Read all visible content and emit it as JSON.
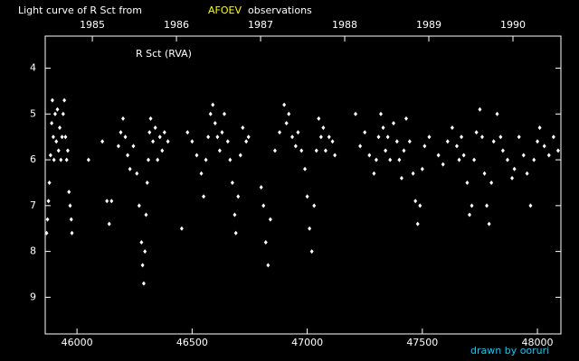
{
  "chart_data": {
    "type": "scatter",
    "title": "Light curve of R Sct from",
    "title_highlight": "AFOEV",
    "title_end": "observations",
    "annotation": "R Sct (RVA)",
    "credit": "drawn by ooruri",
    "xlim": [
      45862,
      48102
    ],
    "xticks": [
      46000,
      46500,
      47000,
      47500,
      48000
    ],
    "x2lim": [
      1984.44,
      1990.57
    ],
    "x2ticks": [
      1985,
      1986,
      1987,
      1988,
      1989,
      1990
    ],
    "ylim": [
      3.3,
      9.8
    ],
    "y_inverted": true,
    "yticks": [
      4,
      5,
      6,
      7,
      8,
      9
    ],
    "color": "#ffffff",
    "x": [
      45868,
      45872,
      45876,
      45880,
      45885,
      45890,
      45893,
      45897,
      45900,
      45905,
      45910,
      45915,
      45920,
      45925,
      45930,
      45935,
      45940,
      45945,
      45950,
      45955,
      45960,
      45965,
      45970,
      45975,
      45978,
      46050,
      46110,
      46130,
      46140,
      46150,
      46180,
      46190,
      46200,
      46210,
      46220,
      46230,
      46245,
      46260,
      46270,
      46280,
      46285,
      46290,
      46295,
      46300,
      46305,
      46310,
      46315,
      46320,
      46330,
      46340,
      46350,
      46360,
      46370,
      46380,
      46395,
      46455,
      46480,
      46500,
      46520,
      46540,
      46550,
      46560,
      46570,
      46580,
      46590,
      46600,
      46610,
      46620,
      46630,
      46640,
      46655,
      46665,
      46675,
      46685,
      46690,
      46700,
      46710,
      46720,
      46735,
      46745,
      46800,
      46810,
      46820,
      46830,
      46840,
      46860,
      46880,
      46900,
      46910,
      46920,
      46935,
      46950,
      46960,
      46975,
      46990,
      47000,
      47010,
      47020,
      47030,
      47040,
      47050,
      47060,
      47070,
      47080,
      47095,
      47110,
      47120,
      47210,
      47230,
      47250,
      47270,
      47290,
      47300,
      47310,
      47320,
      47330,
      47340,
      47350,
      47360,
      47375,
      47390,
      47400,
      47410,
      47420,
      47430,
      47445,
      47460,
      47470,
      47480,
      47490,
      47500,
      47510,
      47530,
      47570,
      47590,
      47610,
      47630,
      47650,
      47660,
      47670,
      47680,
      47695,
      47705,
      47715,
      47725,
      47735,
      47750,
      47760,
      47770,
      47780,
      47790,
      47800,
      47810,
      47825,
      47840,
      47850,
      47870,
      47890,
      47900,
      47920,
      47940,
      47955,
      47970,
      47985,
      48000,
      48010,
      48030,
      48050,
      48070,
      48090
    ],
    "values": [
      7.6,
      7.3,
      6.9,
      6.5,
      5.9,
      5.2,
      4.7,
      5.5,
      6.0,
      5.0,
      5.6,
      4.9,
      5.8,
      5.3,
      6.0,
      5.5,
      5.0,
      4.7,
      5.5,
      6.0,
      5.8,
      6.7,
      7.0,
      7.3,
      7.6,
      6.0,
      5.6,
      6.9,
      7.4,
      6.9,
      5.7,
      5.4,
      5.1,
      5.5,
      5.9,
      6.2,
      5.7,
      6.3,
      7.0,
      7.8,
      8.3,
      8.7,
      8.0,
      7.2,
      6.5,
      6.0,
      5.4,
      5.1,
      5.6,
      5.3,
      6.0,
      5.5,
      5.8,
      5.4,
      5.6,
      7.5,
      5.4,
      5.6,
      5.9,
      6.3,
      6.8,
      6.0,
      5.5,
      5.0,
      4.8,
      5.2,
      5.5,
      5.8,
      5.4,
      5.0,
      5.6,
      6.0,
      6.5,
      7.2,
      7.6,
      6.8,
      5.9,
      5.3,
      5.6,
      5.5,
      6.6,
      7.0,
      7.8,
      8.3,
      7.3,
      5.8,
      5.4,
      4.8,
      5.2,
      5.0,
      5.5,
      5.7,
      5.4,
      5.8,
      6.2,
      6.8,
      7.5,
      8.0,
      7.0,
      5.8,
      5.1,
      5.5,
      5.3,
      5.8,
      5.5,
      5.6,
      5.9,
      5.0,
      5.7,
      5.4,
      5.9,
      6.3,
      6.0,
      5.5,
      5.0,
      5.3,
      5.8,
      5.5,
      6.0,
      5.2,
      5.6,
      6.0,
      6.4,
      5.8,
      5.1,
      5.6,
      6.3,
      6.9,
      7.4,
      7.0,
      6.2,
      5.7,
      5.5,
      5.9,
      6.1,
      5.6,
      5.3,
      5.7,
      6.0,
      5.5,
      5.9,
      6.5,
      7.2,
      7.0,
      6.0,
      5.4,
      4.9,
      5.5,
      6.3,
      7.0,
      7.4,
      6.5,
      5.6,
      5.0,
      5.5,
      5.8,
      6.0,
      6.4,
      6.2,
      5.5,
      5.9,
      6.3,
      7.0,
      6.0,
      5.6,
      5.3,
      5.7,
      5.9,
      5.5,
      5.8
    ]
  }
}
